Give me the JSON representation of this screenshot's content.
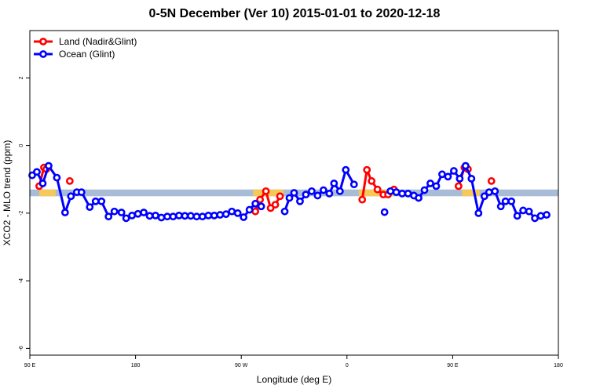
{
  "chart_data": {
    "type": "line",
    "title": "0-5N December (Ver 10)   2015-01-01 to 2020-12-18",
    "xlabel": "Longitude (deg E)",
    "ylabel": "XCO2 - MLO trend (ppm)",
    "xlim": [
      90,
      540
    ],
    "ylim": [
      -6.2,
      3.4
    ],
    "x_ticks": [
      {
        "value": 90,
        "label": "90 E"
      },
      {
        "value": 180,
        "label": "180"
      },
      {
        "value": 270,
        "label": "90 W"
      },
      {
        "value": 360,
        "label": "0"
      },
      {
        "value": 450,
        "label": "90 E"
      },
      {
        "value": 540,
        "label": "180"
      }
    ],
    "y_ticks": [
      {
        "value": 2,
        "label": "2"
      },
      {
        "value": 0,
        "label": "0"
      },
      {
        "value": -2,
        "label": "-2"
      },
      {
        "value": -4,
        "label": "-4"
      },
      {
        "value": -6,
        "label": "-6"
      }
    ],
    "grid": false,
    "legend_position": "top-left",
    "reference_band": {
      "y_low": -1.5,
      "y_high": -1.3,
      "color": "#a8bcd8"
    },
    "land_band_segments": [
      [
        98,
        112
      ],
      [
        280,
        306
      ],
      [
        370,
        400
      ],
      [
        458,
        473
      ]
    ],
    "land_band_color": "#f5c85a",
    "series": [
      {
        "name": "Land (Nadir&Glint)",
        "color": "#ff0000",
        "segments": [
          [
            [
              98,
              -1.2
            ],
            [
              102,
              -0.65
            ],
            [
              104,
              -0.7
            ]
          ],
          [
            [
              124,
              -1.05
            ]
          ],
          [
            [
              282,
              -1.95
            ],
            [
              286,
              -1.6
            ],
            [
              291,
              -1.35
            ],
            [
              295,
              -1.85
            ],
            [
              299,
              -1.75
            ],
            [
              303,
              -1.5
            ]
          ],
          [
            [
              373,
              -1.6
            ],
            [
              377,
              -0.72
            ],
            [
              381,
              -1.05
            ],
            [
              386,
              -1.3
            ],
            [
              391,
              -1.45
            ],
            [
              395,
              -1.45
            ]
          ],
          [
            [
              400,
              -1.3
            ]
          ],
          [
            [
              455,
              -1.2
            ],
            [
              460,
              -0.65
            ],
            [
              463,
              -0.7
            ]
          ],
          [
            [
              483,
              -1.05
            ]
          ]
        ]
      },
      {
        "name": "Ocean (Glint)",
        "color": "#0000ff",
        "segments": [
          [
            [
              92,
              -0.88
            ],
            [
              96,
              -0.78
            ],
            [
              101,
              -1.12
            ],
            [
              106,
              -0.6
            ],
            [
              113,
              -0.95
            ],
            [
              120,
              -1.98
            ],
            [
              125,
              -1.5
            ],
            [
              130,
              -1.38
            ],
            [
              134,
              -1.38
            ],
            [
              141,
              -1.82
            ],
            [
              146,
              -1.65
            ],
            [
              151,
              -1.65
            ],
            [
              157,
              -2.1
            ],
            [
              162,
              -1.95
            ],
            [
              168,
              -1.98
            ],
            [
              172,
              -2.15
            ],
            [
              177,
              -2.07
            ],
            [
              182,
              -2.02
            ],
            [
              187,
              -1.98
            ],
            [
              192,
              -2.08
            ],
            [
              197,
              -2.07
            ],
            [
              202,
              -2.13
            ],
            [
              207,
              -2.1
            ],
            [
              212,
              -2.1
            ],
            [
              217,
              -2.07
            ],
            [
              222,
              -2.08
            ],
            [
              227,
              -2.08
            ],
            [
              232,
              -2.1
            ],
            [
              237,
              -2.1
            ],
            [
              242,
              -2.07
            ],
            [
              247,
              -2.07
            ],
            [
              252,
              -2.05
            ],
            [
              257,
              -2.03
            ],
            [
              262,
              -1.95
            ],
            [
              267,
              -2.0
            ],
            [
              272,
              -2.12
            ],
            [
              277,
              -1.9
            ],
            [
              282,
              -1.72
            ],
            [
              287,
              -1.8
            ]
          ],
          [
            [
              307,
              -1.95
            ],
            [
              311,
              -1.55
            ],
            [
              315,
              -1.4
            ],
            [
              320,
              -1.65
            ],
            [
              325,
              -1.45
            ],
            [
              330,
              -1.35
            ],
            [
              335,
              -1.48
            ],
            [
              340,
              -1.32
            ],
            [
              345,
              -1.42
            ],
            [
              349,
              -1.12
            ],
            [
              354,
              -1.35
            ],
            [
              359,
              -0.72
            ],
            [
              366,
              -1.15
            ]
          ],
          [
            [
              392,
              -1.97
            ]
          ],
          [
            [
              397,
              -1.35
            ],
            [
              402,
              -1.38
            ],
            [
              407,
              -1.42
            ],
            [
              412,
              -1.42
            ],
            [
              417,
              -1.48
            ],
            [
              421,
              -1.55
            ],
            [
              426,
              -1.32
            ],
            [
              431,
              -1.12
            ],
            [
              436,
              -1.2
            ],
            [
              441,
              -0.85
            ],
            [
              446,
              -0.92
            ],
            [
              451,
              -0.75
            ],
            [
              456,
              -0.98
            ],
            [
              461,
              -0.6
            ],
            [
              466,
              -0.98
            ],
            [
              472,
              -2.0
            ],
            [
              477,
              -1.5
            ],
            [
              481,
              -1.38
            ],
            [
              486,
              -1.35
            ],
            [
              491,
              -1.8
            ],
            [
              495,
              -1.65
            ],
            [
              500,
              -1.65
            ],
            [
              505,
              -2.08
            ],
            [
              510,
              -1.92
            ],
            [
              515,
              -1.95
            ],
            [
              520,
              -2.15
            ],
            [
              525,
              -2.08
            ],
            [
              530,
              -2.05
            ]
          ]
        ]
      }
    ]
  }
}
